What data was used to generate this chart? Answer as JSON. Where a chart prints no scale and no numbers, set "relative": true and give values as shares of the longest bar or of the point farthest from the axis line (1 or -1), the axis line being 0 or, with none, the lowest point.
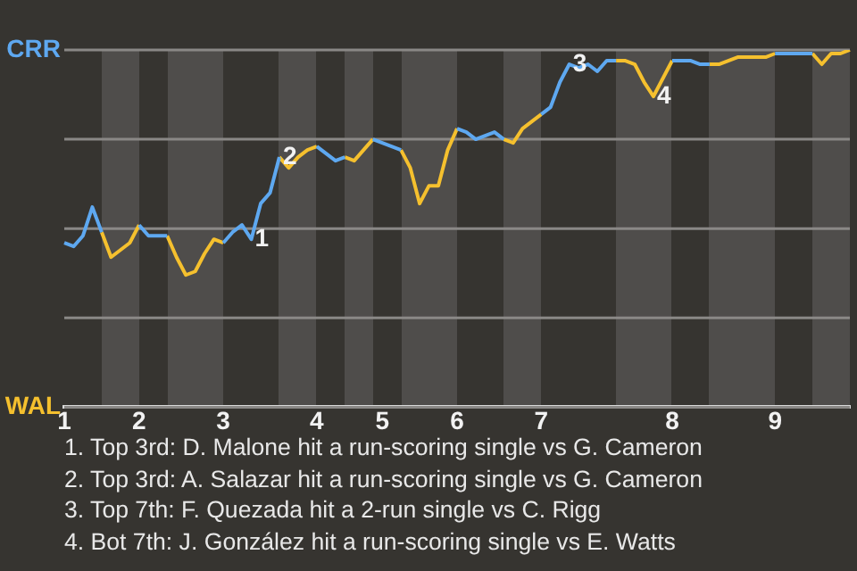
{
  "chart_data": {
    "type": "line",
    "relative": true,
    "categories": [
      "1",
      null,
      null,
      null,
      null,
      null,
      null,
      null,
      "2",
      null,
      null,
      null,
      null,
      null,
      null,
      null,
      null,
      "3",
      null,
      null,
      null,
      null,
      null,
      null,
      null,
      null,
      null,
      "4",
      null,
      null,
      null,
      null,
      null,
      null,
      "5",
      null,
      null,
      null,
      null,
      null,
      null,
      null,
      "6",
      null,
      null,
      null,
      null,
      null,
      null,
      null,
      null,
      "7",
      null,
      null,
      null,
      null,
      null,
      null,
      null,
      null,
      null,
      null,
      null,
      null,
      null,
      "8",
      null,
      null,
      null,
      null,
      null,
      null,
      null,
      null,
      null,
      null,
      "9",
      null,
      null,
      null,
      null,
      null,
      null,
      null,
      null
    ],
    "series": [
      {
        "name": "CRR",
        "color": "#5ea8f0",
        "values": [
          0.46,
          0.45,
          0.48,
          0.56,
          0.49,
          null,
          null,
          null,
          0.51,
          0.48,
          0.48,
          0.48,
          null,
          null,
          null,
          null,
          null,
          0.46,
          0.49,
          0.51,
          0.47,
          0.57,
          0.6,
          0.7,
          null,
          null,
          null,
          0.73,
          0.71,
          0.69,
          0.7,
          null,
          null,
          0.75,
          0.74,
          0.73,
          0.72,
          null,
          null,
          null,
          null,
          null,
          0.78,
          0.77,
          0.75,
          0.76,
          0.77,
          0.75,
          null,
          null,
          null,
          0.82,
          0.84,
          0.91,
          0.96,
          0.95,
          0.96,
          0.94,
          0.97,
          0.97,
          null,
          null,
          null,
          null,
          null,
          0.97,
          0.97,
          0.97,
          0.96,
          0.96,
          null,
          null,
          null,
          null,
          null,
          null,
          0.99,
          0.99,
          0.99,
          0.99,
          0.99,
          null,
          null,
          null,
          null
        ]
      },
      {
        "name": "WAL",
        "color": "#f5c02e",
        "values": [
          null,
          null,
          null,
          null,
          0.49,
          0.42,
          0.44,
          0.46,
          0.51,
          null,
          null,
          0.48,
          0.42,
          0.37,
          0.38,
          0.43,
          0.47,
          0.46,
          null,
          null,
          null,
          null,
          null,
          0.7,
          0.67,
          0.7,
          0.72,
          0.73,
          null,
          null,
          0.7,
          0.69,
          0.72,
          0.75,
          null,
          null,
          0.72,
          0.67,
          0.57,
          0.62,
          0.62,
          0.72,
          0.78,
          null,
          null,
          null,
          null,
          0.75,
          0.74,
          0.78,
          0.8,
          0.82,
          null,
          null,
          null,
          null,
          null,
          null,
          null,
          0.97,
          0.97,
          0.96,
          0.91,
          0.87,
          0.92,
          0.97,
          null,
          null,
          null,
          0.96,
          0.96,
          0.97,
          0.98,
          0.98,
          0.98,
          0.98,
          0.99,
          null,
          null,
          null,
          0.99,
          0.96,
          0.99,
          0.99,
          1
        ]
      }
    ],
    "grid": "y",
    "marker": "none",
    "line_style": "solid",
    "legend": "left",
    "annotations": [
      {
        "text": "1",
        "y": 0.47
      },
      {
        "text": "2",
        "y": 0.7
      },
      {
        "text": "3",
        "y": 0.96
      },
      {
        "text": "4",
        "y": 0.87
      },
      "1. Top 3rd: D. Malone hit a run-scoring single vs G. Cameron",
      "2. Top 3rd: A. Salazar hit a run-scoring single vs G. Cameron",
      "3. Top 7th: F. Quezada hit a 2-run single vs C. Rigg",
      "4. Bot 7th: J. González hit a run-scoring single vs E. Watts"
    ]
  }
}
